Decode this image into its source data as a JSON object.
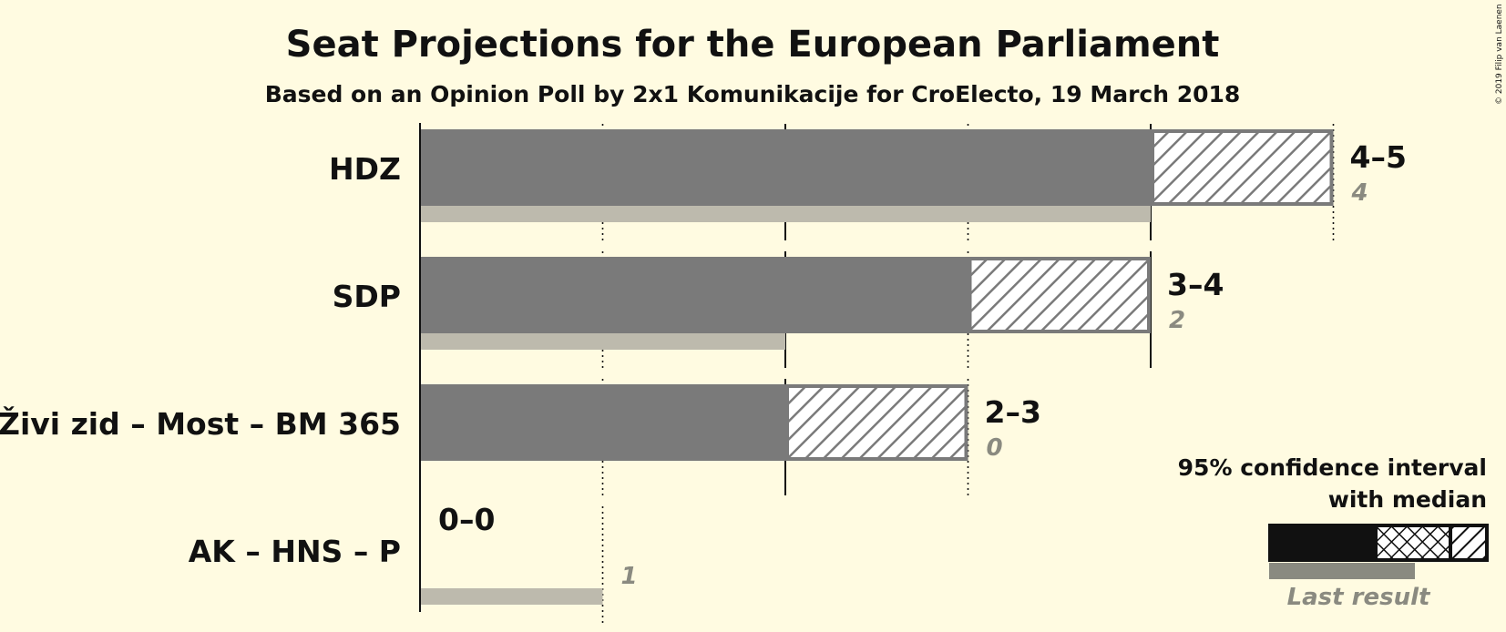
{
  "chart_data": {
    "type": "bar",
    "title": "Seat Projections for the European Parliament",
    "subtitle": "Based on an Opinion Poll by 2x1 Komunikacije for CroElecto, 19 March 2018",
    "parties": [
      {
        "name": "HDZ",
        "ci_low": 4,
        "ci_high": 5,
        "range_label": "4–5",
        "last_result": 4,
        "last_label": "4"
      },
      {
        "name": "SDP",
        "ci_low": 3,
        "ci_high": 4,
        "range_label": "3–4",
        "last_result": 2,
        "last_label": "2"
      },
      {
        "name": "Živi zid – Most – BM 365",
        "ci_low": 2,
        "ci_high": 3,
        "range_label": "2–3",
        "last_result": 0,
        "last_label": "0"
      },
      {
        "name": "AK – HNS – P",
        "ci_low": 0,
        "ci_high": 0,
        "range_label": "0–0",
        "last_result": 1,
        "last_label": "1"
      }
    ],
    "xlim": [
      0,
      5
    ],
    "legend": {
      "title_line1": "95% confidence interval",
      "title_line2": "with median",
      "last_result_label": "Last result",
      "placement": "bottom-right"
    },
    "copyright": "© 2019 Filip van Laenen"
  },
  "colors": {
    "background": "#fffbe1",
    "bar": "#7a7a7a",
    "last_result": "#bdbaad",
    "text": "#111111",
    "muted_text": "#8a8a80"
  }
}
